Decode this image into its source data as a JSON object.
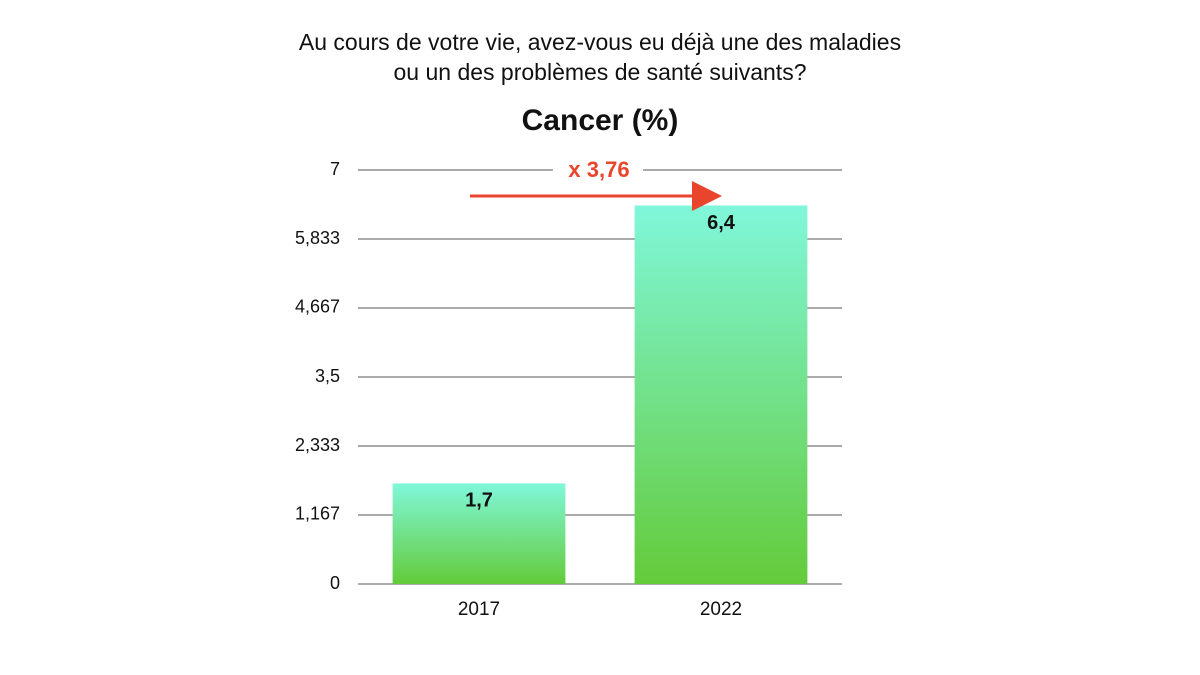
{
  "chart_data": {
    "type": "bar",
    "title": [
      "Au cours de votre vie, avez-vous eu déjà une des maladies",
      "ou un des problèmes de santé suivants?"
    ],
    "subtitle": "Cancer (%)",
    "categories": [
      "2017",
      "2022"
    ],
    "values": [
      1.7,
      6.4
    ],
    "value_labels": [
      "1,7",
      "6,4"
    ],
    "color": [
      "#80f7da",
      "#64cb3a"
    ],
    "ylim": [
      0,
      7
    ],
    "yticks": [
      0,
      {
        "value": 1.167,
        "label": "1,167"
      },
      {
        "value": 2.333,
        "label": "2,333"
      },
      {
        "value": 3.5,
        "label": "3,5"
      },
      {
        "value": 4.667,
        "label": "4,667"
      },
      {
        "value": 5.833,
        "label": "5,833"
      },
      7
    ],
    "grid": true,
    "annotation": {
      "text": "x 3,76",
      "color": "#e8452c"
    }
  }
}
